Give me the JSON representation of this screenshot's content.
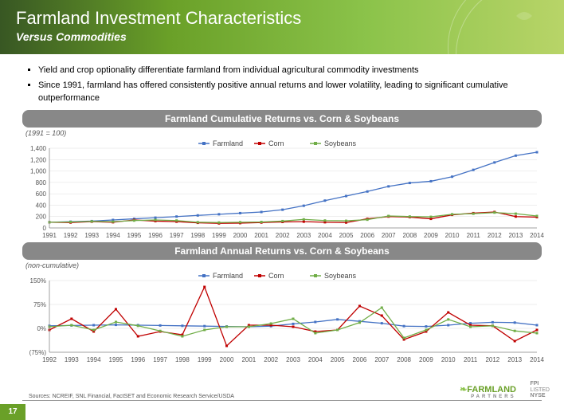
{
  "header": {
    "title": "Farmland Investment Characteristics",
    "subtitle": "Versus Commodities"
  },
  "bullets": [
    "Yield and crop optionality differentiate farmland from individual agricultural commodity investments",
    "Since 1991, farmland has offered consistently positive annual returns and lower volatility, leading to significant cumulative outperformance"
  ],
  "chart1": {
    "title": "Farmland Cumulative Returns vs. Corn & Soybeans",
    "note": "(1991 = 100)",
    "x_labels": [
      "1991",
      "1992",
      "1993",
      "1994",
      "1995",
      "1996",
      "1997",
      "1998",
      "1999",
      "2000",
      "2001",
      "2002",
      "2003",
      "2004",
      "2005",
      "2006",
      "2007",
      "2008",
      "2009",
      "2010",
      "2011",
      "2012",
      "2013",
      "2014"
    ],
    "y_min": 0,
    "y_max": 1400,
    "y_step": 200,
    "series": [
      {
        "name": "Farmland",
        "color": "#4472c4",
        "marker": "line",
        "values": [
          100,
          110,
          120,
          140,
          160,
          180,
          200,
          220,
          240,
          260,
          280,
          320,
          390,
          480,
          560,
          640,
          730,
          790,
          820,
          900,
          1020,
          1150,
          1270,
          1330
        ]
      },
      {
        "name": "Corn",
        "color": "#c00000",
        "marker": "line",
        "values": [
          100,
          95,
          110,
          100,
          140,
          120,
          110,
          90,
          80,
          85,
          95,
          105,
          110,
          100,
          95,
          160,
          200,
          190,
          160,
          230,
          260,
          280,
          200,
          190
        ]
      },
      {
        "name": "Soybeans",
        "color": "#70ad47",
        "marker": "line",
        "values": [
          100,
          105,
          115,
          110,
          130,
          140,
          130,
          100,
          95,
          100,
          105,
          120,
          150,
          130,
          125,
          145,
          210,
          200,
          195,
          240,
          250,
          270,
          250,
          210
        ]
      }
    ],
    "legend_colors": {
      "Farmland": "#4472c4",
      "Corn": "#c00000",
      "Soybeans": "#70ad47"
    }
  },
  "chart2": {
    "title": "Farmland Annual Returns vs. Corn & Soybeans",
    "note": "(non-cumulative)",
    "x_labels": [
      "1992",
      "1993",
      "1994",
      "1995",
      "1996",
      "1997",
      "1998",
      "1999",
      "2000",
      "2001",
      "2002",
      "2003",
      "2004",
      "2005",
      "2006",
      "2007",
      "2008",
      "2009",
      "2010",
      "2011",
      "2012",
      "2013",
      "2014"
    ],
    "y_min": -75,
    "y_max": 150,
    "y_step": 75,
    "y_labels": [
      "(75%)",
      "0%",
      "75%",
      "150%"
    ],
    "series": [
      {
        "name": "Farmland",
        "color": "#4472c4",
        "values": [
          8,
          9,
          10,
          11,
          10,
          9,
          8,
          7,
          6,
          5,
          7,
          14,
          20,
          28,
          22,
          16,
          7,
          6,
          10,
          16,
          19,
          18,
          10
        ]
      },
      {
        "name": "Corn",
        "color": "#c00000",
        "values": [
          -5,
          30,
          -10,
          60,
          -25,
          -10,
          -20,
          130,
          -55,
          10,
          10,
          5,
          -10,
          -5,
          70,
          40,
          -35,
          -10,
          50,
          10,
          8,
          -40,
          -5
        ]
      },
      {
        "name": "Soybeans",
        "color": "#70ad47",
        "values": [
          5,
          10,
          -5,
          20,
          8,
          -8,
          -25,
          -5,
          5,
          5,
          15,
          30,
          -15,
          -5,
          18,
          65,
          -30,
          -5,
          28,
          5,
          8,
          -8,
          -15
        ]
      }
    ]
  },
  "footer": {
    "sources": "Sources: NCREIF, SNL Financial, FactSET and Economic Research Service/USDA",
    "page": "17",
    "logo": "FARMLAND",
    "logo_sub": "PARTNERS",
    "ticker1": "FPI",
    "ticker2": "LISTED",
    "ticker3": "NYSE"
  },
  "style": {
    "grid_color": "#ddd",
    "axis_color": "#888",
    "bg": "#ffffff"
  }
}
